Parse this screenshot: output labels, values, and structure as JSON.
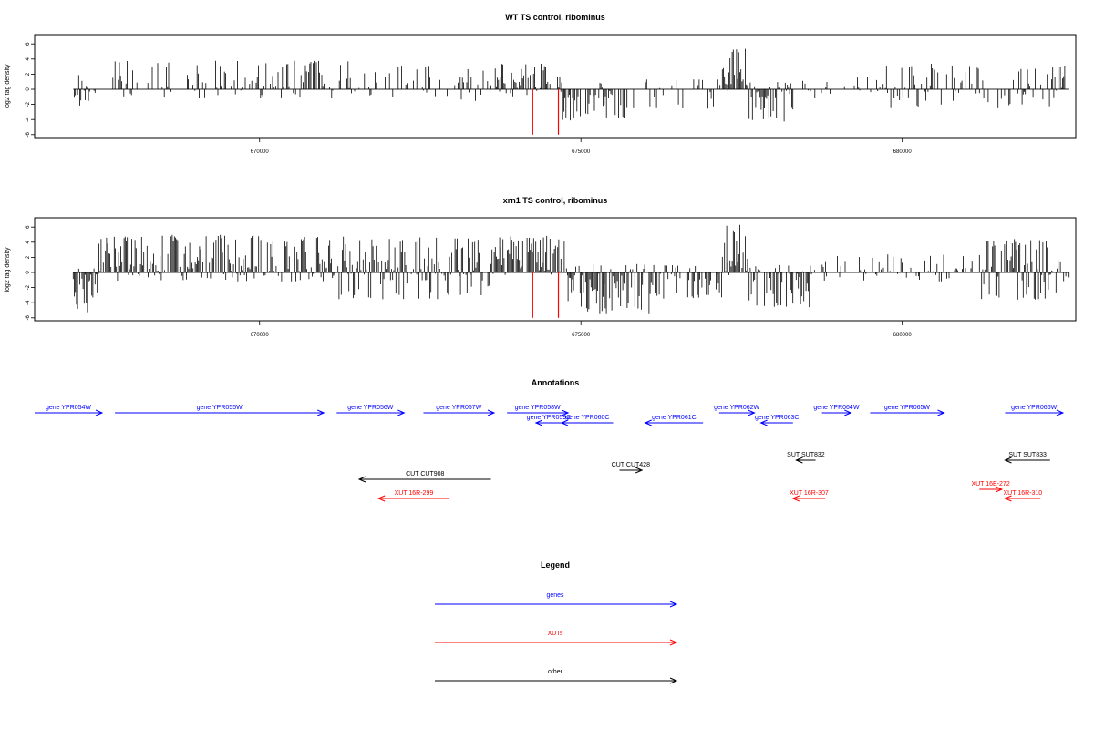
{
  "chart_data": [
    {
      "type": "bar",
      "title": "WT TS control, ribominus",
      "ylabel": "log2 tag density",
      "xlabel": "",
      "xlim": [
        666500,
        682700
      ],
      "ylim": [
        -6,
        7
      ],
      "x_ticks": [
        670000,
        675000,
        680000
      ],
      "y_ticks": [
        -6,
        -4,
        -2,
        0,
        2,
        4,
        6
      ],
      "markers": {
        "color": "#ff0000",
        "positions": [
          674250,
          674650
        ],
        "value": -6
      },
      "regions": [
        {
          "start": 667100,
          "end": 667450,
          "pos_max": 2.2,
          "neg_max": -2.4,
          "density": 0.9
        },
        {
          "start": 667700,
          "end": 671800,
          "pos_max": 3.8,
          "neg_max": -1.2,
          "density": 0.45
        },
        {
          "start": 671800,
          "end": 672900,
          "pos_max": 3.2,
          "neg_max": -1.0,
          "density": 0.45
        },
        {
          "start": 672900,
          "end": 673700,
          "pos_max": 3.3,
          "neg_max": -1.6,
          "density": 0.6
        },
        {
          "start": 673700,
          "end": 674700,
          "pos_max": 3.4,
          "neg_max": -1.0,
          "density": 0.8
        },
        {
          "start": 674700,
          "end": 675700,
          "pos_max": 0.9,
          "neg_max": -4.2,
          "density": 0.9
        },
        {
          "start": 675700,
          "end": 677200,
          "pos_max": 1.5,
          "neg_max": -2.6,
          "density": 0.25
        },
        {
          "start": 677200,
          "end": 677600,
          "pos_max": 5.9,
          "neg_max": -0.3,
          "density": 1.0
        },
        {
          "start": 677600,
          "end": 678300,
          "pos_max": 1.0,
          "neg_max": -4.3,
          "density": 0.9
        },
        {
          "start": 678300,
          "end": 679600,
          "pos_max": 1.6,
          "neg_max": -1.2,
          "density": 0.25
        },
        {
          "start": 679600,
          "end": 682600,
          "pos_max": 3.4,
          "neg_max": -2.4,
          "density": 0.55
        }
      ]
    },
    {
      "type": "bar",
      "title": "xrn1 TS control, ribominus",
      "ylabel": "log2 tag density",
      "xlabel": "",
      "xlim": [
        666500,
        682700
      ],
      "ylim": [
        -6,
        7
      ],
      "x_ticks": [
        670000,
        675000,
        680000
      ],
      "y_ticks": [
        -6,
        -4,
        -2,
        0,
        2,
        4,
        6
      ],
      "markers": {
        "color": "#ff0000",
        "positions": [
          674250,
          674650
        ],
        "value": -6
      },
      "regions": [
        {
          "start": 667100,
          "end": 667500,
          "pos_max": 1.0,
          "neg_max": -5.8,
          "density": 1.0
        },
        {
          "start": 667500,
          "end": 671100,
          "pos_max": 5.0,
          "neg_max": -1.2,
          "density": 0.9
        },
        {
          "start": 671100,
          "end": 673600,
          "pos_max": 4.8,
          "neg_max": -3.6,
          "density": 0.9
        },
        {
          "start": 673600,
          "end": 674800,
          "pos_max": 5.0,
          "neg_max": -0.4,
          "density": 1.0
        },
        {
          "start": 674800,
          "end": 676100,
          "pos_max": 1.2,
          "neg_max": -5.6,
          "density": 0.95
        },
        {
          "start": 676100,
          "end": 677200,
          "pos_max": 1.0,
          "neg_max": -3.6,
          "density": 0.7
        },
        {
          "start": 677200,
          "end": 677600,
          "pos_max": 6.6,
          "neg_max": -0.5,
          "density": 1.0
        },
        {
          "start": 677600,
          "end": 678600,
          "pos_max": 1.0,
          "neg_max": -4.6,
          "density": 0.95
        },
        {
          "start": 678600,
          "end": 681200,
          "pos_max": 2.4,
          "neg_max": -1.2,
          "density": 0.45
        },
        {
          "start": 681200,
          "end": 682600,
          "pos_max": 4.5,
          "neg_max": -3.6,
          "density": 0.9
        }
      ]
    }
  ],
  "annotations": {
    "title": "Annotations",
    "features": [
      {
        "label": "gene YPR054W",
        "type": "gene",
        "start": 666500,
        "end": 667550,
        "strand": "+",
        "row": 0
      },
      {
        "label": "gene YPR055W",
        "type": "gene",
        "start": 667750,
        "end": 671000,
        "strand": "+",
        "row": 0
      },
      {
        "label": "gene YPR056W",
        "type": "gene",
        "start": 671200,
        "end": 672250,
        "strand": "+",
        "row": 0
      },
      {
        "label": "gene YPR057W",
        "type": "gene",
        "start": 672550,
        "end": 673650,
        "strand": "+",
        "row": 0
      },
      {
        "label": "gene YPR058W",
        "type": "gene",
        "start": 673850,
        "end": 674800,
        "strand": "+",
        "row": 0
      },
      {
        "label": "gene YPR059C",
        "type": "gene",
        "start": 674300,
        "end": 674700,
        "strand": "-",
        "row": 1
      },
      {
        "label": "gene YPR060C",
        "type": "gene",
        "start": 674700,
        "end": 675500,
        "strand": "-",
        "row": 1
      },
      {
        "label": "gene YPR061C",
        "type": "gene",
        "start": 676000,
        "end": 676900,
        "strand": "-",
        "row": 1
      },
      {
        "label": "gene YPR062W",
        "type": "gene",
        "start": 677150,
        "end": 677700,
        "strand": "+",
        "row": 0
      },
      {
        "label": "gene YPR063C",
        "type": "gene",
        "start": 677800,
        "end": 678300,
        "strand": "-",
        "row": 1
      },
      {
        "label": "gene YPR064W",
        "type": "gene",
        "start": 678750,
        "end": 679200,
        "strand": "+",
        "row": 0
      },
      {
        "label": "gene YPR065W",
        "type": "gene",
        "start": 679500,
        "end": 680650,
        "strand": "+",
        "row": 0
      },
      {
        "label": "gene YPR066W",
        "type": "gene",
        "start": 681600,
        "end": 682500,
        "strand": "+",
        "row": 0
      },
      {
        "label": "SUT SUT832",
        "type": "other",
        "start": 678350,
        "end": 678650,
        "strand": "-",
        "row": 2
      },
      {
        "label": "SUT SUT833",
        "type": "other",
        "start": 681600,
        "end": 682300,
        "strand": "-",
        "row": 2
      },
      {
        "label": "CUT CUT428",
        "type": "other",
        "start": 675600,
        "end": 675950,
        "strand": "+",
        "row": 3
      },
      {
        "label": "CUT CUT908",
        "type": "other",
        "start": 671550,
        "end": 673600,
        "strand": "-",
        "row": 4
      },
      {
        "label": "XUT 16E-272",
        "type": "XUT",
        "start": 681200,
        "end": 681550,
        "strand": "+",
        "row": 5
      },
      {
        "label": "XUT 16R-299",
        "type": "XUT",
        "start": 671850,
        "end": 672950,
        "strand": "-",
        "row": 6
      },
      {
        "label": "XUT 16R-307",
        "type": "XUT",
        "start": 678300,
        "end": 678800,
        "strand": "-",
        "row": 6
      },
      {
        "label": "XUT 16R-310",
        "type": "XUT",
        "start": 681600,
        "end": 682150,
        "strand": "-",
        "row": 6
      }
    ]
  },
  "legend": {
    "title": "Legend",
    "items": [
      {
        "label": "genes",
        "color": "#0000ff"
      },
      {
        "label": "XUTs",
        "color": "#ff0000"
      },
      {
        "label": "other",
        "color": "#000000"
      }
    ]
  },
  "colors": {
    "gene": "#0000ff",
    "XUT": "#ff0000",
    "other": "#000000",
    "marker": "#ff0000"
  }
}
